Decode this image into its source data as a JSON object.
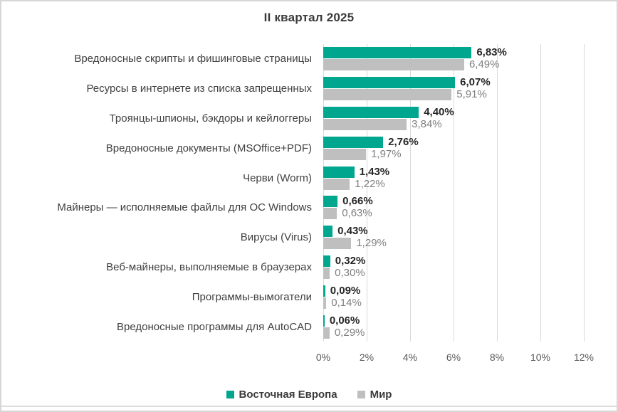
{
  "chart_data": {
    "type": "bar",
    "orientation": "horizontal",
    "title": "II квартал 2025",
    "categories": [
      "Вредоносные скрипты и фишинговые страницы",
      "Ресурсы в интернете из списка запрещенных",
      "Троянцы-шпионы, бэкдоры и кейлоггеры",
      "Вредоносные документы (MSOffice+PDF)",
      "Черви (Worm)",
      "Майнеры — исполняемые файлы для ОС Windows",
      "Вирусы (Virus)",
      "Веб-майнеры, выполняемые в браузерах",
      "Программы-вымогатели",
      "Вредоносные программы для AutoCAD"
    ],
    "series": [
      {
        "name": "Восточная Европа",
        "color": "#00A78E",
        "values": [
          6.83,
          6.07,
          4.4,
          2.76,
          1.43,
          0.66,
          0.43,
          0.32,
          0.09,
          0.06
        ],
        "labels": [
          "6,83%",
          "6,07%",
          "4,40%",
          "2,76%",
          "1,43%",
          "0,66%",
          "0,43%",
          "0,32%",
          "0,09%",
          "0,06%"
        ]
      },
      {
        "name": "Мир",
        "color": "#BFBFBF",
        "values": [
          6.49,
          5.91,
          3.84,
          1.97,
          1.22,
          0.63,
          1.29,
          0.3,
          0.14,
          0.29
        ],
        "labels": [
          "6,49%",
          "5,91%",
          "3,84%",
          "1,97%",
          "1,22%",
          "0,63%",
          "1,29%",
          "0,30%",
          "0,14%",
          "0,29%"
        ]
      }
    ],
    "x_ticks": [
      "0%",
      "2%",
      "4%",
      "6%",
      "8%",
      "10%",
      "12%"
    ],
    "xlim": [
      0,
      12
    ],
    "grid": true,
    "legend_position": "bottom"
  },
  "colors": {
    "accent": "#00A78E",
    "muted_bar": "#BFBFBF",
    "gridline": "#D9D9D9",
    "value_primary_text": "#262626",
    "value_secondary_text": "#7F7F7F",
    "category_label_text": "#3F3F3F",
    "tick_text": "#595959",
    "title_text": "#3A3A3A",
    "frame_border": "#D7D7D7"
  }
}
